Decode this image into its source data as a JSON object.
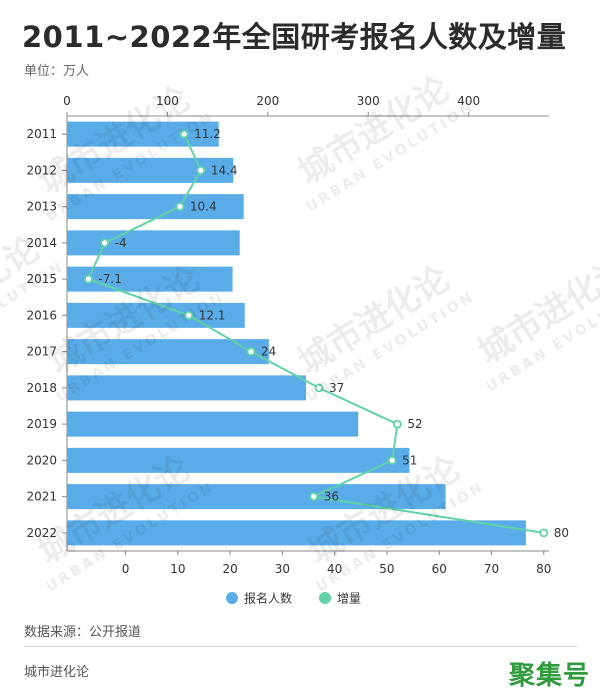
{
  "title": "2011~2022年全国研考报名人数及增量",
  "unit": "单位：万人",
  "source": "数据来源：公开报道",
  "brand": "城市进化论",
  "publisher": "聚集号",
  "watermark": {
    "main": "城市进化论",
    "sub": "URBAN EVOLUTION"
  },
  "colors": {
    "bar": "#5aace9",
    "line": "#5fd3a5",
    "axis": "#888888",
    "text": "#333333"
  },
  "chart_data": {
    "type": "bar",
    "orientation": "horizontal",
    "categories": [
      "2011",
      "2012",
      "2013",
      "2014",
      "2015",
      "2016",
      "2017",
      "2018",
      "2019",
      "2020",
      "2021",
      "2022"
    ],
    "series": [
      {
        "name": "报名人数",
        "type": "bar",
        "axis": "top",
        "values": [
          151.1,
          165.6,
          176,
          172,
          164.9,
          177,
          201,
          238,
          290,
          341,
          377,
          457
        ]
      },
      {
        "name": "增量",
        "type": "line",
        "axis": "bottom",
        "values": [
          11.2,
          14.4,
          10.4,
          -4,
          -7.1,
          12.1,
          24,
          37,
          52,
          51,
          36,
          80
        ],
        "labels": [
          "11.2",
          "14.4",
          "10.4",
          "-4",
          "-7.1",
          "12.1",
          "24",
          "37",
          "52",
          "51",
          "36",
          "80"
        ]
      }
    ],
    "top_axis": {
      "range": [
        0,
        480
      ],
      "ticks": [
        0,
        100,
        200,
        300,
        400
      ]
    },
    "bottom_axis": {
      "range": [
        -11.2,
        81
      ],
      "ticks": [
        0,
        10,
        20,
        30,
        40,
        50,
        60,
        70,
        80
      ]
    },
    "legend_position": "bottom-center",
    "grid": false
  }
}
